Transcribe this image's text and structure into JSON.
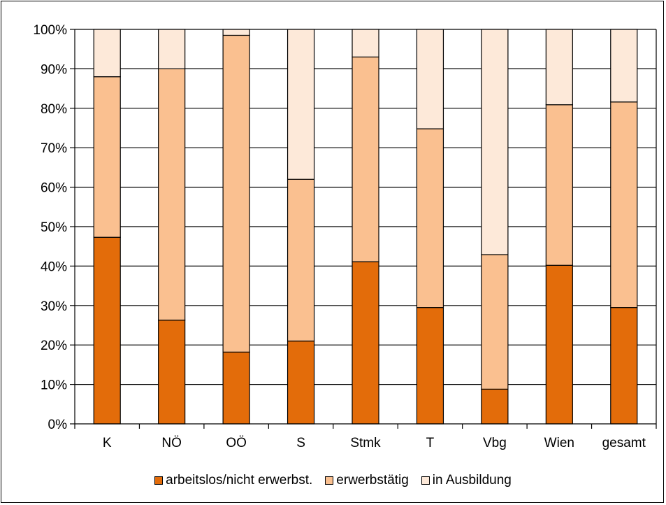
{
  "chart_data": {
    "type": "bar",
    "stacked": true,
    "categories": [
      "K",
      "NÖ",
      "OÖ",
      "S",
      "Stmk",
      "T",
      "Vbg",
      "Wien",
      "gesamt"
    ],
    "series": [
      {
        "name": "arbeitslos/nicht erwerbst.",
        "color": "#E36C0A",
        "values": [
          47.3,
          26.3,
          18.2,
          21.0,
          41.1,
          29.5,
          8.8,
          40.2,
          29.5
        ]
      },
      {
        "name": "erwerbstätig",
        "color": "#FAC090",
        "values": [
          40.7,
          63.7,
          80.3,
          41.0,
          51.9,
          45.3,
          34.1,
          40.7,
          52.1
        ]
      },
      {
        "name": "in Ausbildung",
        "color": "#FDE9D9",
        "values": [
          12.0,
          10.0,
          1.5,
          38.0,
          7.0,
          25.2,
          57.1,
          19.1,
          18.4
        ]
      }
    ],
    "yticks": [
      "0%",
      "10%",
      "20%",
      "30%",
      "40%",
      "50%",
      "60%",
      "70%",
      "80%",
      "90%",
      "100%"
    ],
    "ylim": [
      0,
      100
    ],
    "grid": true,
    "legend": "bottom",
    "title": "",
    "xlabel": "",
    "ylabel": ""
  }
}
